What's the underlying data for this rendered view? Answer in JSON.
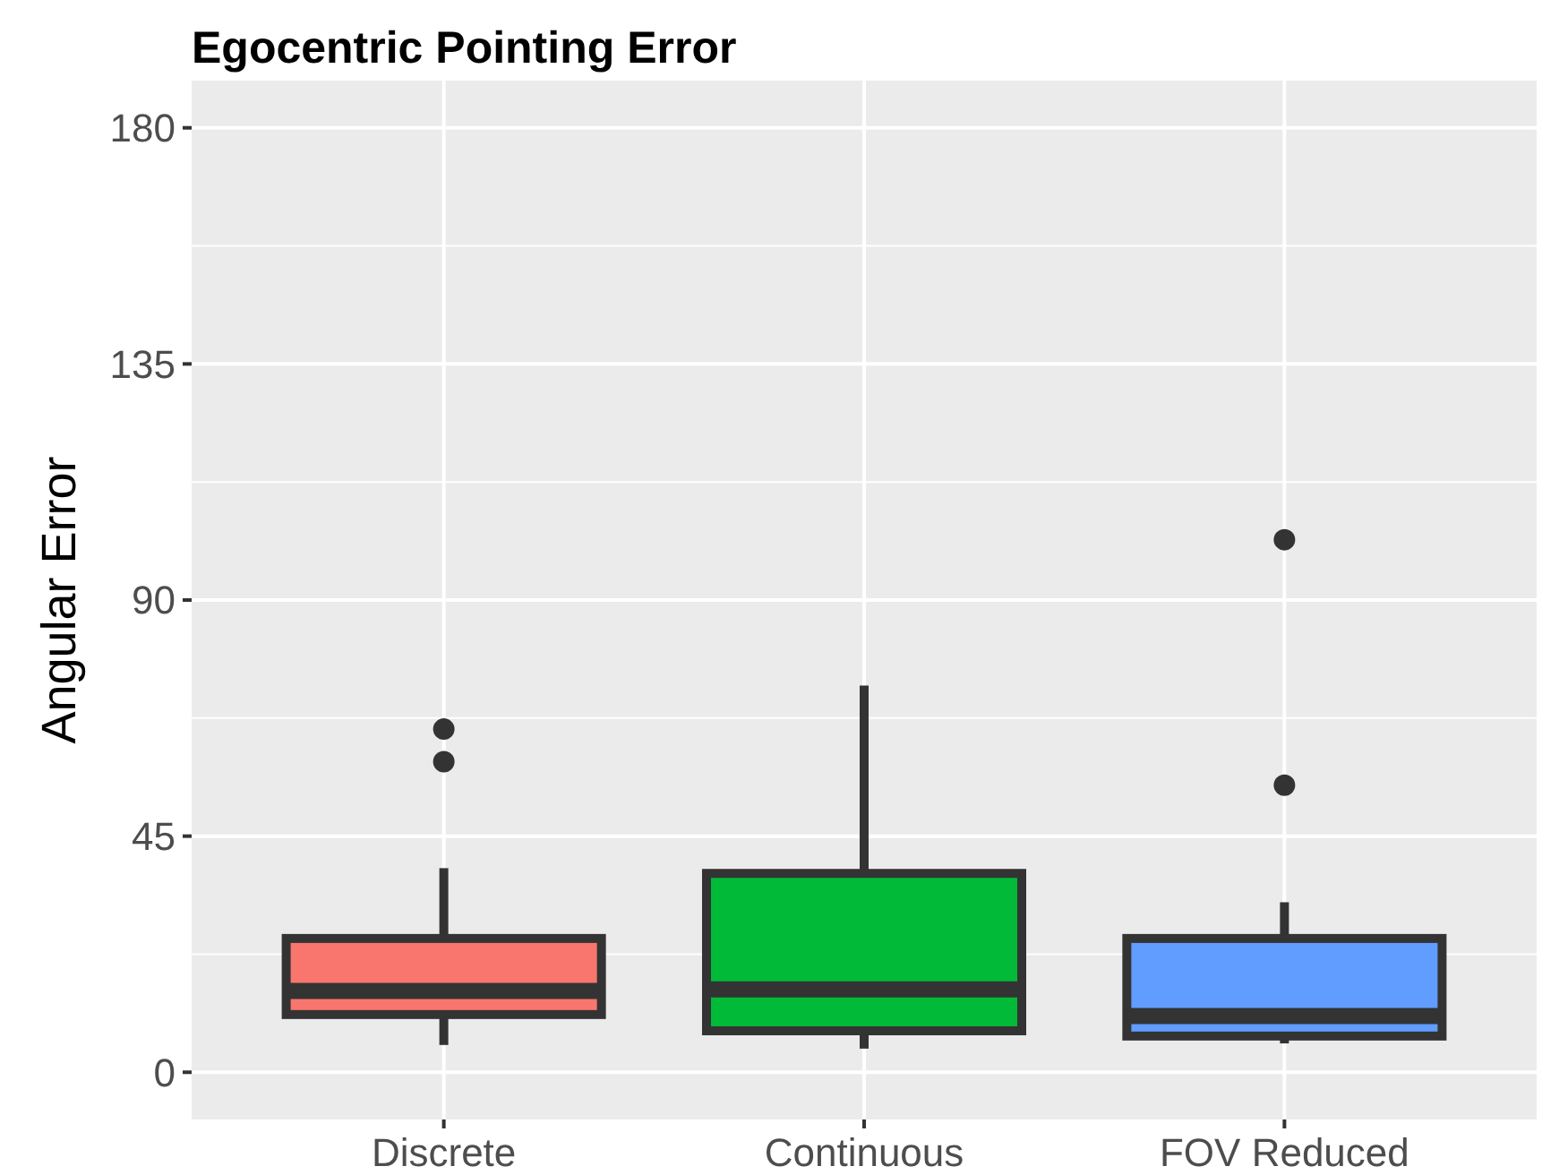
{
  "chart_data": {
    "type": "box",
    "title": "Egocentric Pointing Error",
    "ylabel": "Angular Error",
    "categories": [
      "Discrete",
      "Continuous",
      "FOV Reduced"
    ],
    "colors": [
      "#f8766d",
      "#00ba38",
      "#619cff"
    ],
    "boxes": [
      {
        "low": 5.2,
        "q1": 11,
        "median": 15.5,
        "q3": 25.5,
        "high": 38.9,
        "outliers": [
          65.4,
          59.2
        ]
      },
      {
        "low": 4.5,
        "q1": 7.9,
        "median": 15.8,
        "q3": 37.9,
        "high": 73.7
      },
      {
        "low": 5.5,
        "q1": 6.9,
        "median": 10.7,
        "q3": 25.5,
        "high": 32.4,
        "outliers": [
          101.5,
          54.7
        ]
      }
    ],
    "ylim": [
      -9,
      189
    ],
    "yticks": [
      0,
      45,
      90,
      135,
      180
    ],
    "grid": true
  }
}
